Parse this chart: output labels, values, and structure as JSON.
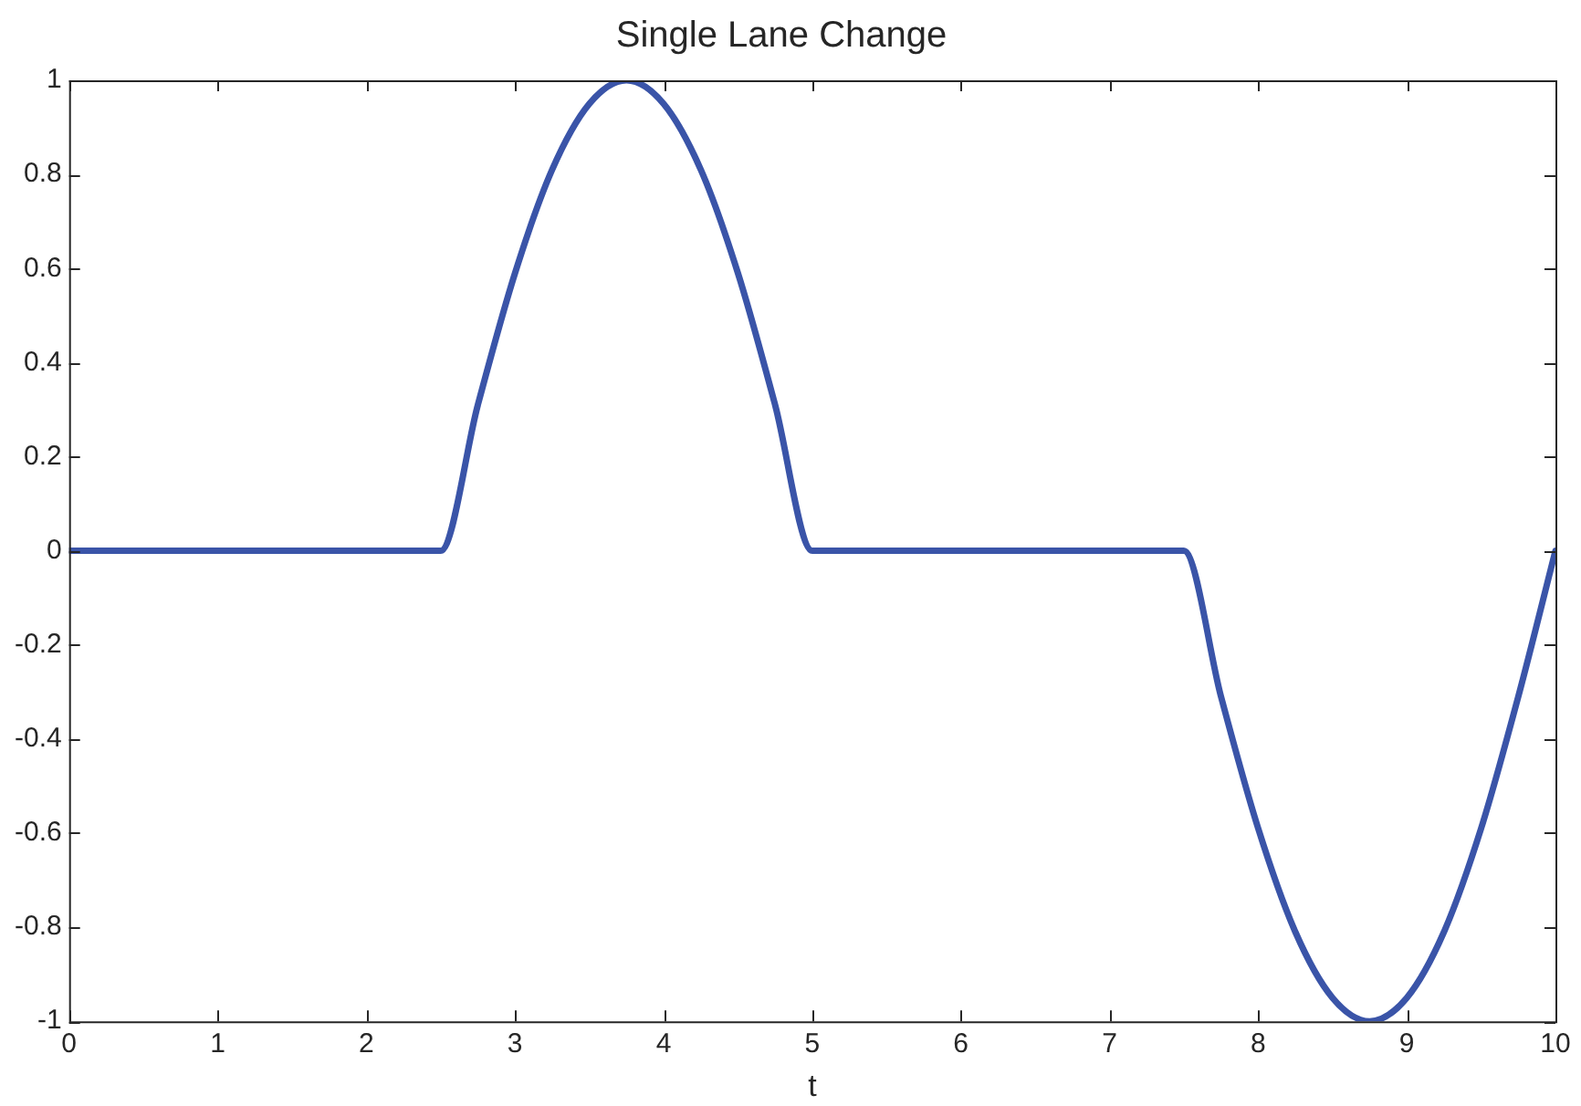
{
  "chart_data": {
    "type": "line",
    "title": "Single Lane Change",
    "xlabel": "t",
    "x": [
      0,
      2.5,
      2.75,
      3,
      3.25,
      3.5,
      3.75,
      4,
      4.25,
      4.5,
      4.75,
      5,
      7.5,
      7.75,
      8,
      8.25,
      8.5,
      8.75,
      9,
      9.25,
      9.5,
      9.75,
      10
    ],
    "series": [
      {
        "color": "#3a54a8",
        "values": [
          0,
          0,
          0.31,
          0.59,
          0.81,
          0.95,
          1,
          0.95,
          0.81,
          0.59,
          0.31,
          0,
          0,
          -0.31,
          -0.59,
          -0.81,
          -0.95,
          -1,
          -0.95,
          -0.81,
          -0.59,
          -0.31,
          0
        ]
      }
    ],
    "xlim": [
      0,
      10
    ],
    "xticks": [
      0,
      1,
      2,
      3,
      4,
      5,
      6,
      7,
      8,
      9,
      10
    ],
    "ylim": [
      -1,
      1
    ],
    "yticks": [
      -1,
      -0.8,
      -0.6,
      -0.4,
      -0.2,
      0,
      0.2,
      0.4,
      0.6,
      0.8,
      1
    ],
    "grid": false,
    "legend": false,
    "marker": "none",
    "line_style": "solid"
  }
}
